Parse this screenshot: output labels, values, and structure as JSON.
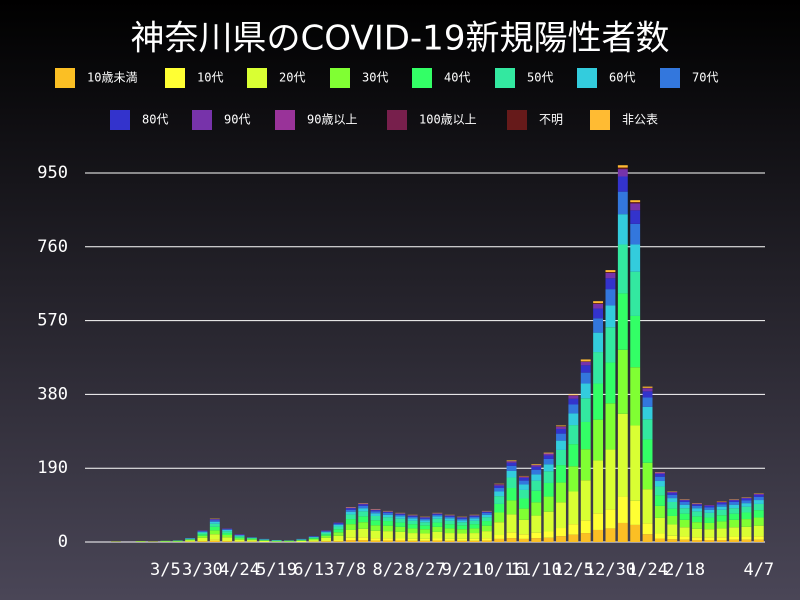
{
  "chart_data": {
    "type": "stacked_bar",
    "title": "神奈川県のCOVID-19新規陽性者数",
    "categories": [
      null,
      null,
      null,
      null,
      null,
      null,
      "3/5",
      null,
      null,
      "3/30",
      null,
      null,
      "4/24",
      null,
      null,
      "5/19",
      null,
      null,
      "6/13",
      null,
      null,
      "7/8",
      null,
      null,
      "8/2",
      null,
      null,
      "8/27",
      null,
      null,
      "9/21",
      null,
      null,
      "10/16",
      null,
      null,
      "11/10",
      null,
      null,
      "12/5",
      null,
      null,
      "12/30",
      null,
      null,
      "1/24",
      null,
      null,
      "2/18",
      null,
      null,
      null,
      null,
      null,
      "4/7"
    ],
    "ylim": [
      0,
      1000
    ],
    "yticks": [
      0,
      190,
      380,
      570,
      760,
      950
    ],
    "grid": true,
    "series": [
      {
        "name": "10歳未満",
        "color": "#fbbf24",
        "values": [
          0,
          0,
          0,
          0,
          0,
          0,
          0,
          0,
          1,
          2,
          3,
          2,
          1,
          1,
          0,
          0,
          0,
          0,
          1,
          2,
          2,
          5,
          5,
          4,
          4,
          4,
          3,
          3,
          4,
          3,
          3,
          3,
          4,
          8,
          10,
          8,
          10,
          11,
          15,
          19,
          23,
          31,
          35,
          49,
          44,
          20,
          9,
          7,
          6,
          5,
          5,
          5,
          6,
          6,
          6
        ]
      },
      {
        "name": "10代",
        "color": "#ffff33",
        "values": [
          0,
          0,
          0,
          0,
          0,
          0,
          0,
          0,
          1,
          2,
          4,
          2,
          1,
          1,
          1,
          0,
          0,
          1,
          1,
          2,
          3,
          6,
          7,
          6,
          6,
          5,
          5,
          5,
          5,
          5,
          5,
          5,
          6,
          10,
          15,
          12,
          14,
          16,
          21,
          27,
          33,
          43,
          49,
          68,
          62,
          28,
          13,
          9,
          8,
          7,
          7,
          7,
          8,
          8,
          9
        ]
      },
      {
        "name": "20代",
        "color": "#d9ff33",
        "values": [
          0,
          0,
          1,
          0,
          1,
          1,
          1,
          1,
          2,
          7,
          13,
          8,
          4,
          3,
          2,
          1,
          1,
          2,
          3,
          7,
          11,
          20,
          22,
          19,
          18,
          17,
          15,
          14,
          17,
          15,
          14,
          15,
          18,
          33,
          46,
          37,
          44,
          51,
          66,
          84,
          103,
          136,
          154,
          213,
          194,
          88,
          40,
          29,
          24,
          22,
          21,
          23,
          24,
          25,
          27
        ]
      },
      {
        "name": "30代",
        "color": "#80ff33",
        "values": [
          0,
          0,
          0,
          0,
          1,
          0,
          1,
          1,
          2,
          5,
          10,
          6,
          3,
          2,
          1,
          1,
          1,
          1,
          3,
          5,
          9,
          15,
          17,
          14,
          14,
          13,
          12,
          11,
          13,
          12,
          11,
          12,
          14,
          25,
          36,
          29,
          34,
          39,
          51,
          65,
          80,
          105,
          119,
          165,
          150,
          68,
          31,
          22,
          19,
          17,
          16,
          18,
          19,
          20,
          21
        ]
      },
      {
        "name": "40代",
        "color": "#33ff66",
        "values": [
          0,
          0,
          0,
          0,
          0,
          0,
          1,
          1,
          1,
          4,
          9,
          5,
          3,
          2,
          1,
          1,
          1,
          1,
          2,
          4,
          8,
          13,
          15,
          13,
          12,
          11,
          11,
          10,
          11,
          11,
          10,
          11,
          12,
          22,
          32,
          26,
          30,
          35,
          45,
          57,
          70,
          93,
          105,
          145,
          132,
          60,
          27,
          19,
          16,
          15,
          14,
          16,
          16,
          17,
          19
        ]
      },
      {
        "name": "50代",
        "color": "#33e8a0",
        "values": [
          0,
          0,
          0,
          0,
          0,
          0,
          0,
          1,
          1,
          4,
          8,
          5,
          3,
          1,
          1,
          1,
          1,
          1,
          2,
          4,
          7,
          12,
          13,
          11,
          10,
          10,
          9,
          8,
          10,
          9,
          8,
          9,
          10,
          20,
          27,
          22,
          26,
          30,
          39,
          49,
          61,
          81,
          91,
          126,
          114,
          52,
          23,
          17,
          14,
          13,
          12,
          14,
          14,
          15,
          16
        ]
      },
      {
        "name": "60代",
        "color": "#33ccdd",
        "values": [
          0,
          0,
          0,
          0,
          0,
          0,
          0,
          0,
          1,
          2,
          5,
          3,
          2,
          1,
          1,
          1,
          0,
          1,
          1,
          2,
          4,
          7,
          8,
          7,
          6,
          6,
          6,
          5,
          6,
          6,
          5,
          6,
          6,
          12,
          17,
          14,
          16,
          18,
          24,
          30,
          38,
          50,
          56,
          78,
          70,
          32,
          14,
          10,
          9,
          8,
          8,
          8,
          9,
          9,
          10
        ]
      },
      {
        "name": "70代",
        "color": "#3377dd",
        "values": [
          0,
          0,
          0,
          0,
          0,
          0,
          0,
          0,
          1,
          2,
          4,
          2,
          1,
          1,
          1,
          0,
          0,
          1,
          1,
          2,
          3,
          5,
          6,
          5,
          5,
          4,
          4,
          4,
          4,
          4,
          4,
          4,
          5,
          9,
          13,
          10,
          12,
          14,
          18,
          23,
          28,
          37,
          42,
          58,
          53,
          24,
          11,
          8,
          7,
          6,
          6,
          6,
          7,
          7,
          8
        ]
      },
      {
        "name": "80代",
        "color": "#3333cc",
        "values": [
          0,
          0,
          0,
          0,
          0,
          0,
          0,
          0,
          0,
          1,
          2,
          1,
          1,
          0,
          0,
          0,
          0,
          0,
          1,
          1,
          2,
          4,
          4,
          3,
          3,
          3,
          3,
          3,
          3,
          3,
          3,
          3,
          3,
          6,
          8,
          7,
          8,
          9,
          12,
          15,
          19,
          25,
          28,
          39,
          35,
          16,
          7,
          5,
          4,
          4,
          4,
          4,
          4,
          5,
          5
        ]
      },
      {
        "name": "90代",
        "color": "#7733aa",
        "values": [
          0,
          0,
          0,
          0,
          0,
          0,
          0,
          0,
          0,
          1,
          1,
          1,
          1,
          0,
          0,
          0,
          0,
          0,
          0,
          1,
          1,
          2,
          2,
          2,
          1,
          1,
          1,
          1,
          1,
          1,
          1,
          1,
          1,
          3,
          4,
          3,
          4,
          5,
          6,
          8,
          9,
          12,
          14,
          19,
          18,
          8,
          4,
          3,
          2,
          2,
          2,
          2,
          2,
          2,
          3
        ]
      },
      {
        "name": "90歳以上",
        "color": "#993399",
        "values": [
          0,
          0,
          0,
          0,
          0,
          0,
          0,
          0,
          0,
          0,
          0,
          0,
          0,
          0,
          0,
          0,
          0,
          0,
          0,
          0,
          0,
          0,
          0,
          0,
          0,
          0,
          0,
          0,
          0,
          0,
          0,
          0,
          0,
          0,
          0,
          0,
          0,
          0,
          0,
          0,
          0,
          0,
          0,
          0,
          0,
          0,
          0,
          0,
          0,
          0,
          0,
          0,
          0,
          0,
          0
        ]
      },
      {
        "name": "100歳以上",
        "color": "#771f4c",
        "values": [
          0,
          0,
          0,
          0,
          0,
          0,
          0,
          0,
          0,
          0,
          0,
          0,
          0,
          0,
          0,
          0,
          0,
          0,
          0,
          0,
          0,
          0,
          0,
          0,
          0,
          0,
          0,
          0,
          0,
          0,
          0,
          0,
          0,
          0,
          0,
          0,
          0,
          0,
          0,
          0,
          0,
          0,
          0,
          1,
          0,
          0,
          0,
          0,
          0,
          0,
          0,
          0,
          0,
          0,
          0
        ]
      },
      {
        "name": "不明",
        "color": "#661a1a",
        "values": [
          0,
          0,
          0,
          0,
          0,
          0,
          0,
          0,
          0,
          0,
          0,
          0,
          0,
          0,
          0,
          0,
          0,
          0,
          0,
          0,
          0,
          0,
          0,
          0,
          0,
          0,
          0,
          0,
          0,
          0,
          0,
          0,
          0,
          1,
          0,
          1,
          0,
          0,
          1,
          1,
          1,
          2,
          2,
          3,
          3,
          1,
          0,
          0,
          0,
          0,
          0,
          1,
          0,
          0,
          0
        ]
      },
      {
        "name": "非公表",
        "color": "#ffbb33",
        "values": [
          0,
          0,
          0,
          0,
          0,
          0,
          0,
          0,
          0,
          0,
          1,
          0,
          0,
          0,
          0,
          0,
          0,
          0,
          0,
          0,
          0,
          1,
          1,
          1,
          1,
          1,
          1,
          1,
          1,
          1,
          1,
          1,
          1,
          1,
          2,
          1,
          2,
          2,
          2,
          2,
          5,
          5,
          5,
          6,
          5,
          3,
          1,
          1,
          1,
          1,
          0,
          1,
          1,
          1,
          1
        ]
      }
    ]
  }
}
